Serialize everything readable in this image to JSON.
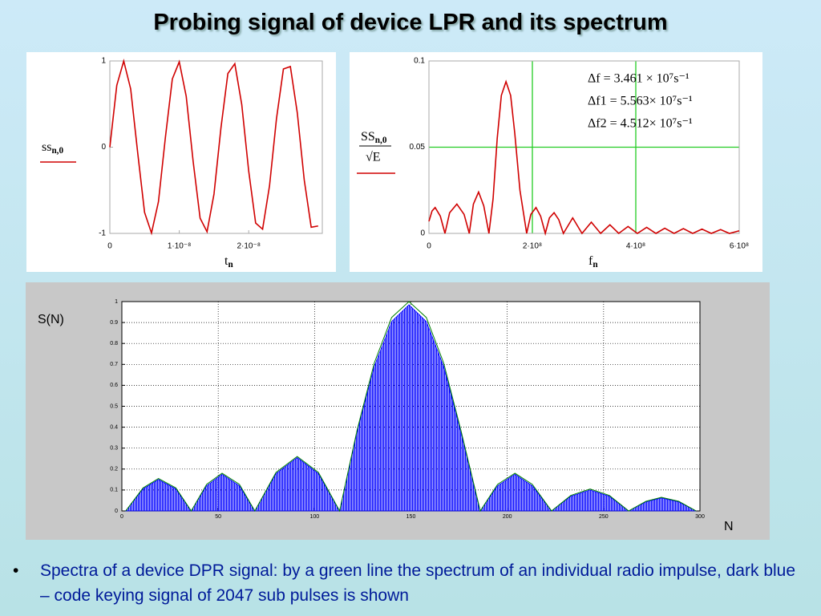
{
  "title": "Probing signal of device LPR and its spectrum",
  "chart_data": [
    {
      "type": "line",
      "color": "#d00000",
      "ylabel": {
        "text": "ss",
        "subscript": "n,0"
      },
      "xlabel": {
        "text": "t",
        "subscript": "n"
      },
      "x": [
        0,
        1e-09,
        2e-09,
        3e-09,
        4e-09,
        5e-09,
        6e-09,
        7e-09,
        8e-09,
        9e-09,
        1e-08,
        1.1e-08,
        1.2e-08,
        1.3e-08,
        1.4e-08,
        1.5e-08,
        1.6e-08,
        1.7e-08,
        1.8e-08,
        1.9e-08,
        2e-08,
        2.1e-08,
        2.2e-08,
        2.3e-08,
        2.4e-08,
        2.5e-08,
        2.6e-08,
        2.7e-08,
        2.8e-08,
        2.9e-08,
        3e-08
      ],
      "values": [
        0,
        0.717,
        0.9996,
        0.676,
        -0.056,
        -0.756,
        -0.996,
        -0.633,
        0.112,
        0.791,
        0.99,
        0.59,
        -0.167,
        -0.823,
        -0.981,
        -0.544,
        0.222,
        0.854,
        0.968,
        0.494,
        -0.277,
        -0.88,
        -0.951,
        -0.447,
        0.33,
        0.907,
        0.935,
        0.397,
        -0.381,
        -0.928,
        -0.914
      ],
      "xlim": [
        0,
        3.06e-08
      ],
      "ylim": [
        -1,
        1
      ],
      "xticks": [
        0,
        {
          "value": 1e-08,
          "label": "1·10⁻⁸"
        },
        {
          "value": 2e-08,
          "label": "2·10⁻⁸"
        }
      ],
      "yticks": [
        -1,
        0,
        1
      ],
      "grid": false
    },
    {
      "type": "line",
      "color": "#d00000",
      "ylabel": {
        "text": "SS",
        "subscript": "n,0",
        "denominator": "√E"
      },
      "xlabel": {
        "text": "f",
        "subscript": "n"
      },
      "annotations": [
        "Δf = 3.461 × 10⁷s⁻¹",
        "Δf1 = 5.563× 10⁷s⁻¹",
        "Δf2 = 4.512× 10⁷s⁻¹"
      ],
      "x": [
        0,
        6000000.0,
        12000000.0,
        22000000.0,
        31000000.0,
        40000000.0,
        54000000.0,
        68000000.0,
        78000000.0,
        86000000.0,
        96000000.0,
        106000000.0,
        116000000.0,
        124000000.0,
        132000000.0,
        140000000.0,
        149000000.0,
        158000000.0,
        166000000.0,
        176000000.0,
        189000000.0,
        197000000.0,
        207000000.0,
        216000000.0,
        225000000.0,
        233000000.0,
        242000000.0,
        251000000.0,
        260000000.0,
        278000000.0,
        296000000.0,
        314000000.0,
        332000000.0,
        350000000.0,
        367000000.0,
        385000000.0,
        403000000.0,
        421000000.0,
        439000000.0,
        456000000.0,
        474000000.0,
        492000000.0,
        510000000.0,
        528000000.0,
        546000000.0,
        564000000.0,
        581000000.0,
        600000000.0
      ],
      "values": [
        0.007,
        0.013,
        0.015,
        0.01,
        0,
        0.012,
        0.017,
        0.011,
        0,
        0.017,
        0.024,
        0.016,
        0,
        0.02,
        0.055,
        0.08,
        0.088,
        0.08,
        0.058,
        0.025,
        0,
        0.011,
        0.015,
        0.01,
        0,
        0.009,
        0.012,
        0.008,
        0,
        0.009,
        0,
        0.0065,
        0,
        0.005,
        0,
        0.004,
        0,
        0.0035,
        0,
        0.003,
        0,
        0.0028,
        0,
        0.0025,
        0,
        0.0022,
        0,
        0.0015
      ],
      "xlim": [
        0,
        600000000.0
      ],
      "ylim": [
        0,
        0.1
      ],
      "xticks": [
        0,
        {
          "value": 200000000.0,
          "label": "2·10⁸"
        },
        {
          "value": 400000000.0,
          "label": "4·10⁸"
        },
        {
          "value": 600000000.0,
          "label": "6·10⁸"
        }
      ],
      "yticks": [
        0,
        0.05,
        0.1
      ],
      "grid": true,
      "grid_color": "#22cc22",
      "grid_style": "solid"
    },
    {
      "type": "area",
      "ylabel": "S(N)",
      "xlabel": "N",
      "x": [
        2,
        11,
        19,
        28,
        36,
        44,
        52,
        61,
        69,
        80,
        91,
        102,
        113,
        122,
        131,
        140,
        149,
        158,
        167,
        176,
        186,
        195,
        204,
        213,
        223,
        233,
        243,
        253,
        263,
        272,
        280,
        289,
        298
      ],
      "series": [
        {
          "color": "#0000ff",
          "fill": true,
          "values": [
            0,
            0.105,
            0.15,
            0.105,
            0,
            0.12,
            0.175,
            0.12,
            0,
            0.178,
            0.255,
            0.178,
            0,
            0.375,
            0.69,
            0.905,
            0.985,
            0.905,
            0.69,
            0.375,
            0,
            0.12,
            0.175,
            0.12,
            0,
            0.07,
            0.1,
            0.07,
            0,
            0.043,
            0.062,
            0.043,
            0
          ]
        },
        {
          "color": "#008000",
          "fill": false,
          "values": [
            0,
            0.11,
            0.155,
            0.11,
            0,
            0.127,
            0.18,
            0.127,
            0,
            0.184,
            0.26,
            0.184,
            0,
            0.383,
            0.707,
            0.924,
            1,
            0.924,
            0.707,
            0.383,
            0,
            0.127,
            0.18,
            0.127,
            0,
            0.074,
            0.105,
            0.074,
            0,
            0.046,
            0.065,
            0.046,
            0
          ]
        }
      ],
      "xlim": [
        0,
        300
      ],
      "ylim": [
        0,
        1
      ],
      "xticks": [
        0,
        50,
        100,
        150,
        200,
        250,
        300
      ],
      "yticks": [
        0,
        0.1,
        0.2,
        0.3,
        0.4,
        0.5,
        0.6,
        0.7,
        0.8,
        0.9,
        1
      ],
      "grid": true,
      "grid_color": "#000000",
      "grid_style": "dotted"
    }
  ],
  "caption": "Spectra of a device DPR signal: by a green line the spectrum of an individual radio impulse, dark blue – code keying signal of 2047 sub pulses is shown"
}
